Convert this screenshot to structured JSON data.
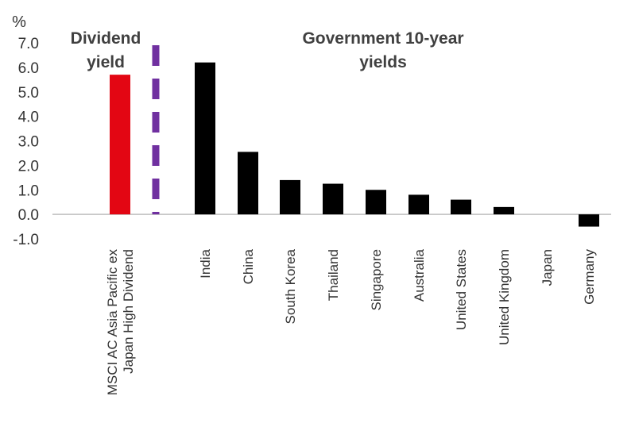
{
  "chart_data": {
    "type": "bar",
    "unit_label": "%",
    "ylim": [
      -1.0,
      7.0
    ],
    "yticks": [
      -1.0,
      0.0,
      1.0,
      2.0,
      3.0,
      4.0,
      5.0,
      6.0,
      7.0
    ],
    "ytick_labels": [
      "-1.0",
      "0.0",
      "1.0",
      "2.0",
      "3.0",
      "4.0",
      "5.0",
      "6.0",
      "7.0"
    ],
    "grid": false,
    "divider_color": "#7030a0",
    "annotations": [
      {
        "id": "dividend",
        "lines": [
          "Dividend",
          "yield"
        ]
      },
      {
        "id": "govt",
        "lines": [
          "Government 10-year",
          "yields"
        ]
      }
    ],
    "series": [
      {
        "group": "dividend",
        "color": "#e30613",
        "categories": [
          [
            "MSCI AC Asia Pacific ex",
            "Japan High Dividend"
          ]
        ],
        "values": [
          5.7
        ]
      },
      {
        "group": "govt",
        "color": "#000000",
        "categories": [
          [
            "India"
          ],
          [
            "China"
          ],
          [
            "South Korea"
          ],
          [
            "Thailand"
          ],
          [
            "Singapore"
          ],
          [
            "Australia"
          ],
          [
            "United States"
          ],
          [
            "United Kingdom"
          ],
          [
            "Japan"
          ],
          [
            "Germany"
          ]
        ],
        "values": [
          6.2,
          2.55,
          1.4,
          1.25,
          1.0,
          0.8,
          0.6,
          0.3,
          0.0,
          -0.5
        ]
      }
    ]
  }
}
